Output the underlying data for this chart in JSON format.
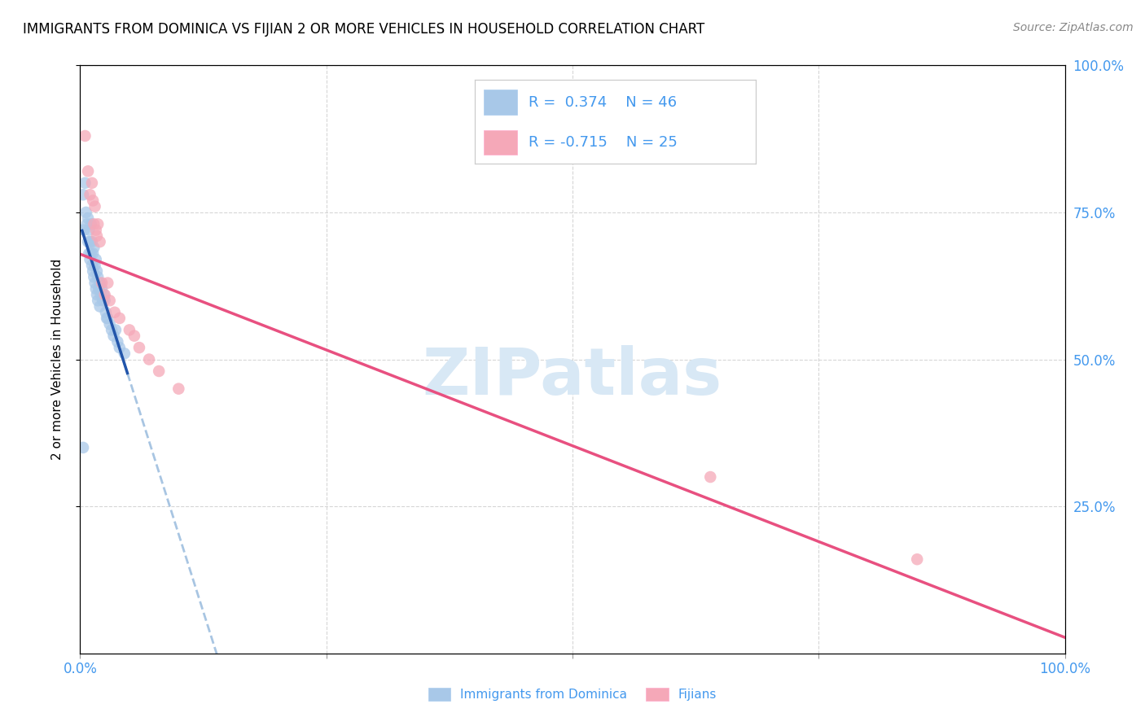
{
  "title": "IMMIGRANTS FROM DOMINICA VS FIJIAN 2 OR MORE VEHICLES IN HOUSEHOLD CORRELATION CHART",
  "source": "Source: ZipAtlas.com",
  "ylabel": "2 or more Vehicles in Household",
  "xlim": [
    0.0,
    1.0
  ],
  "ylim": [
    0.0,
    1.0
  ],
  "blue_R": 0.374,
  "blue_N": 46,
  "pink_R": -0.715,
  "pink_N": 25,
  "blue_color": "#A8C8E8",
  "pink_color": "#F5A8B8",
  "blue_line_color": "#2255AA",
  "pink_line_color": "#E85080",
  "blue_dashed_color": "#99BBDD",
  "background_color": "#FFFFFF",
  "grid_color": "#CCCCCC",
  "watermark_text": "ZIPatlas",
  "watermark_color": "#D8E8F5",
  "blue_x": [
    0.003,
    0.004,
    0.005,
    0.006,
    0.007,
    0.008,
    0.008,
    0.009,
    0.009,
    0.01,
    0.01,
    0.011,
    0.011,
    0.012,
    0.012,
    0.013,
    0.013,
    0.014,
    0.014,
    0.015,
    0.015,
    0.016,
    0.016,
    0.017,
    0.017,
    0.018,
    0.018,
    0.019,
    0.02,
    0.02,
    0.021,
    0.022,
    0.023,
    0.024,
    0.025,
    0.026,
    0.027,
    0.028,
    0.03,
    0.032,
    0.034,
    0.036,
    0.038,
    0.04,
    0.045,
    0.003
  ],
  "blue_y": [
    0.78,
    0.72,
    0.8,
    0.75,
    0.73,
    0.74,
    0.7,
    0.72,
    0.68,
    0.7,
    0.67,
    0.73,
    0.68,
    0.7,
    0.66,
    0.68,
    0.65,
    0.69,
    0.64,
    0.66,
    0.63,
    0.67,
    0.62,
    0.65,
    0.61,
    0.64,
    0.6,
    0.62,
    0.63,
    0.59,
    0.61,
    0.62,
    0.6,
    0.61,
    0.6,
    0.58,
    0.57,
    0.57,
    0.56,
    0.55,
    0.54,
    0.55,
    0.53,
    0.52,
    0.51,
    0.35
  ],
  "pink_x": [
    0.005,
    0.008,
    0.01,
    0.012,
    0.013,
    0.014,
    0.015,
    0.016,
    0.017,
    0.018,
    0.02,
    0.022,
    0.025,
    0.028,
    0.03,
    0.035,
    0.04,
    0.05,
    0.055,
    0.06,
    0.07,
    0.08,
    0.1,
    0.64,
    0.85
  ],
  "pink_y": [
    0.88,
    0.82,
    0.78,
    0.8,
    0.77,
    0.73,
    0.76,
    0.72,
    0.71,
    0.73,
    0.7,
    0.63,
    0.61,
    0.63,
    0.6,
    0.58,
    0.57,
    0.55,
    0.54,
    0.52,
    0.5,
    0.48,
    0.45,
    0.3,
    0.16
  ],
  "title_fontsize": 12,
  "source_fontsize": 10,
  "legend_fontsize": 13,
  "axis_label_fontsize": 11,
  "tick_fontsize": 12
}
